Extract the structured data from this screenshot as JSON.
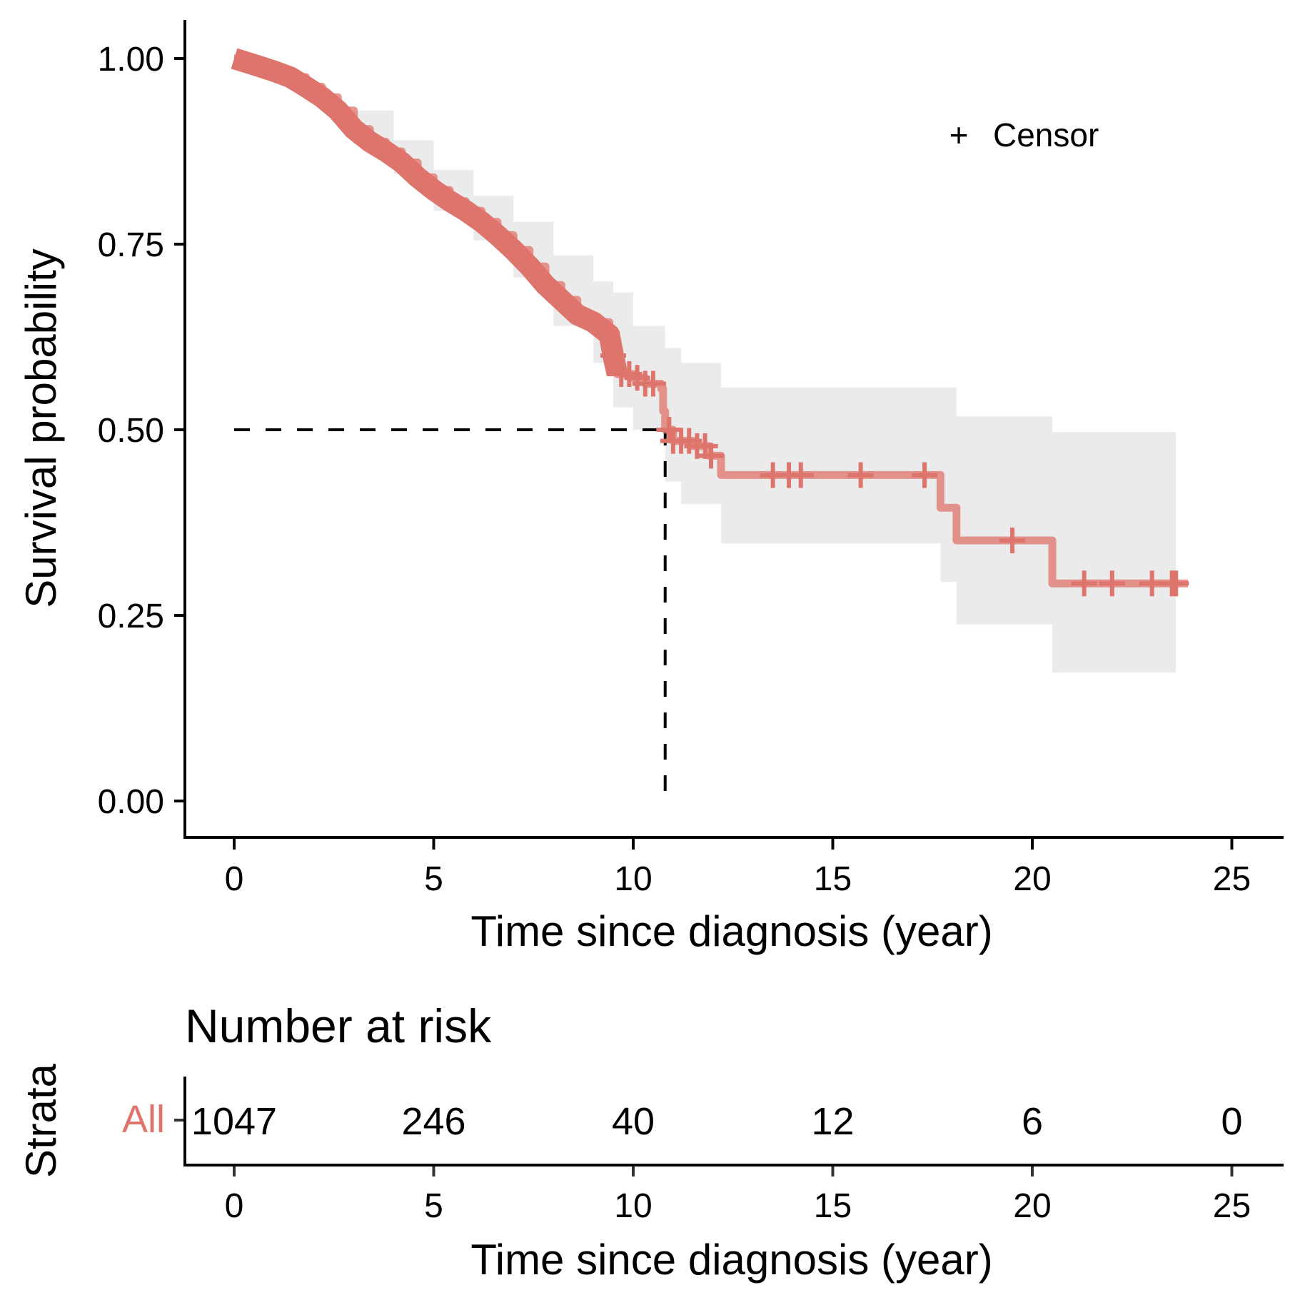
{
  "chart_data": {
    "type": "line",
    "subtype": "kaplan-meier",
    "title": "",
    "xlabel": "Time since diagnosis (year)",
    "ylabel": "Survival probability",
    "xlim": [
      -1.25,
      26.3
    ],
    "ylim": [
      -0.045,
      1.045
    ],
    "x_ticks": [
      0,
      5,
      10,
      15,
      20,
      25
    ],
    "x_tick_labels": [
      "0",
      "5",
      "10",
      "15",
      "20",
      "25"
    ],
    "y_ticks": [
      0,
      0.25,
      0.5,
      0.75,
      1.0
    ],
    "y_tick_labels": [
      "0.00",
      "0.25",
      "0.50",
      "0.75",
      "1.00"
    ],
    "grid": false,
    "legend": {
      "position": "top-right",
      "entries": [
        {
          "symbol": "+",
          "label": "Censor"
        }
      ]
    },
    "series": [
      {
        "name": "All",
        "color": "#E0736B",
        "curve": [
          [
            0,
            1.0
          ],
          [
            0.3,
            0.995
          ],
          [
            0.6,
            0.99
          ],
          [
            1.0,
            0.983
          ],
          [
            1.4,
            0.975
          ],
          [
            1.8,
            0.962
          ],
          [
            2.2,
            0.948
          ],
          [
            2.6,
            0.93
          ],
          [
            3.0,
            0.905
          ],
          [
            3.4,
            0.888
          ],
          [
            3.8,
            0.875
          ],
          [
            4.2,
            0.86
          ],
          [
            4.6,
            0.84
          ],
          [
            5.0,
            0.823
          ],
          [
            5.4,
            0.808
          ],
          [
            5.8,
            0.795
          ],
          [
            6.2,
            0.78
          ],
          [
            6.6,
            0.762
          ],
          [
            7.0,
            0.742
          ],
          [
            7.4,
            0.72
          ],
          [
            7.8,
            0.695
          ],
          [
            8.2,
            0.675
          ],
          [
            8.6,
            0.655
          ],
          [
            9.0,
            0.645
          ],
          [
            9.4,
            0.628
          ],
          [
            9.5,
            0.6
          ],
          [
            9.6,
            0.575
          ],
          [
            10.0,
            0.57
          ],
          [
            10.3,
            0.562
          ],
          [
            10.7,
            0.555
          ],
          [
            10.75,
            0.525
          ],
          [
            10.8,
            0.5
          ],
          [
            11.0,
            0.485
          ],
          [
            11.5,
            0.478
          ],
          [
            11.9,
            0.465
          ],
          [
            12.2,
            0.458
          ],
          [
            12.2,
            0.439
          ],
          [
            17.7,
            0.439
          ],
          [
            17.7,
            0.395
          ],
          [
            18.1,
            0.395
          ],
          [
            18.1,
            0.351
          ],
          [
            20.5,
            0.351
          ],
          [
            20.5,
            0.293
          ],
          [
            23.9,
            0.293
          ]
        ],
        "ci_upper": [
          [
            0,
            1.0
          ],
          [
            3.0,
            0.93
          ],
          [
            4.0,
            0.89
          ],
          [
            5.0,
            0.85
          ],
          [
            6.0,
            0.815
          ],
          [
            7.0,
            0.78
          ],
          [
            8.0,
            0.735
          ],
          [
            9.0,
            0.7
          ],
          [
            9.5,
            0.685
          ],
          [
            10.0,
            0.64
          ],
          [
            10.8,
            0.61
          ],
          [
            11.2,
            0.59
          ],
          [
            12.2,
            0.557
          ],
          [
            17.7,
            0.557
          ],
          [
            18.1,
            0.518
          ],
          [
            20.5,
            0.518
          ],
          [
            20.5,
            0.497
          ],
          [
            23.6,
            0.497
          ]
        ],
        "ci_lower": [
          [
            0,
            1.0
          ],
          [
            3.0,
            0.885
          ],
          [
            4.0,
            0.845
          ],
          [
            5.0,
            0.795
          ],
          [
            6.0,
            0.755
          ],
          [
            7.0,
            0.705
          ],
          [
            8.0,
            0.64
          ],
          [
            9.0,
            0.59
          ],
          [
            9.5,
            0.53
          ],
          [
            10.0,
            0.5
          ],
          [
            10.8,
            0.43
          ],
          [
            11.2,
            0.4
          ],
          [
            12.2,
            0.347
          ],
          [
            17.7,
            0.347
          ],
          [
            17.7,
            0.295
          ],
          [
            18.1,
            0.238
          ],
          [
            20.5,
            0.238
          ],
          [
            20.5,
            0.173
          ],
          [
            23.6,
            0.173
          ]
        ],
        "censor_times_late": [
          9.5,
          9.7,
          9.9,
          10.1,
          10.3,
          10.5,
          10.9,
          11.0,
          11.2,
          11.4,
          11.6,
          11.8,
          11.95,
          13.5,
          13.9,
          14.2,
          15.7,
          17.3,
          19.5,
          21.3,
          22.0,
          23.0,
          23.5,
          23.6
        ]
      }
    ],
    "median_survival": {
      "time": 10.8,
      "probability": 0.5
    },
    "risk_table": {
      "title": "Number at risk",
      "ylabel": "Strata",
      "xlabel": "Time since diagnosis (year)",
      "strata": [
        {
          "name": "All",
          "color": "#E0736B",
          "times": [
            0,
            5,
            10,
            15,
            20,
            25
          ],
          "counts": [
            "1047",
            "246",
            "40",
            "12",
            "6",
            "0"
          ]
        }
      ]
    }
  }
}
